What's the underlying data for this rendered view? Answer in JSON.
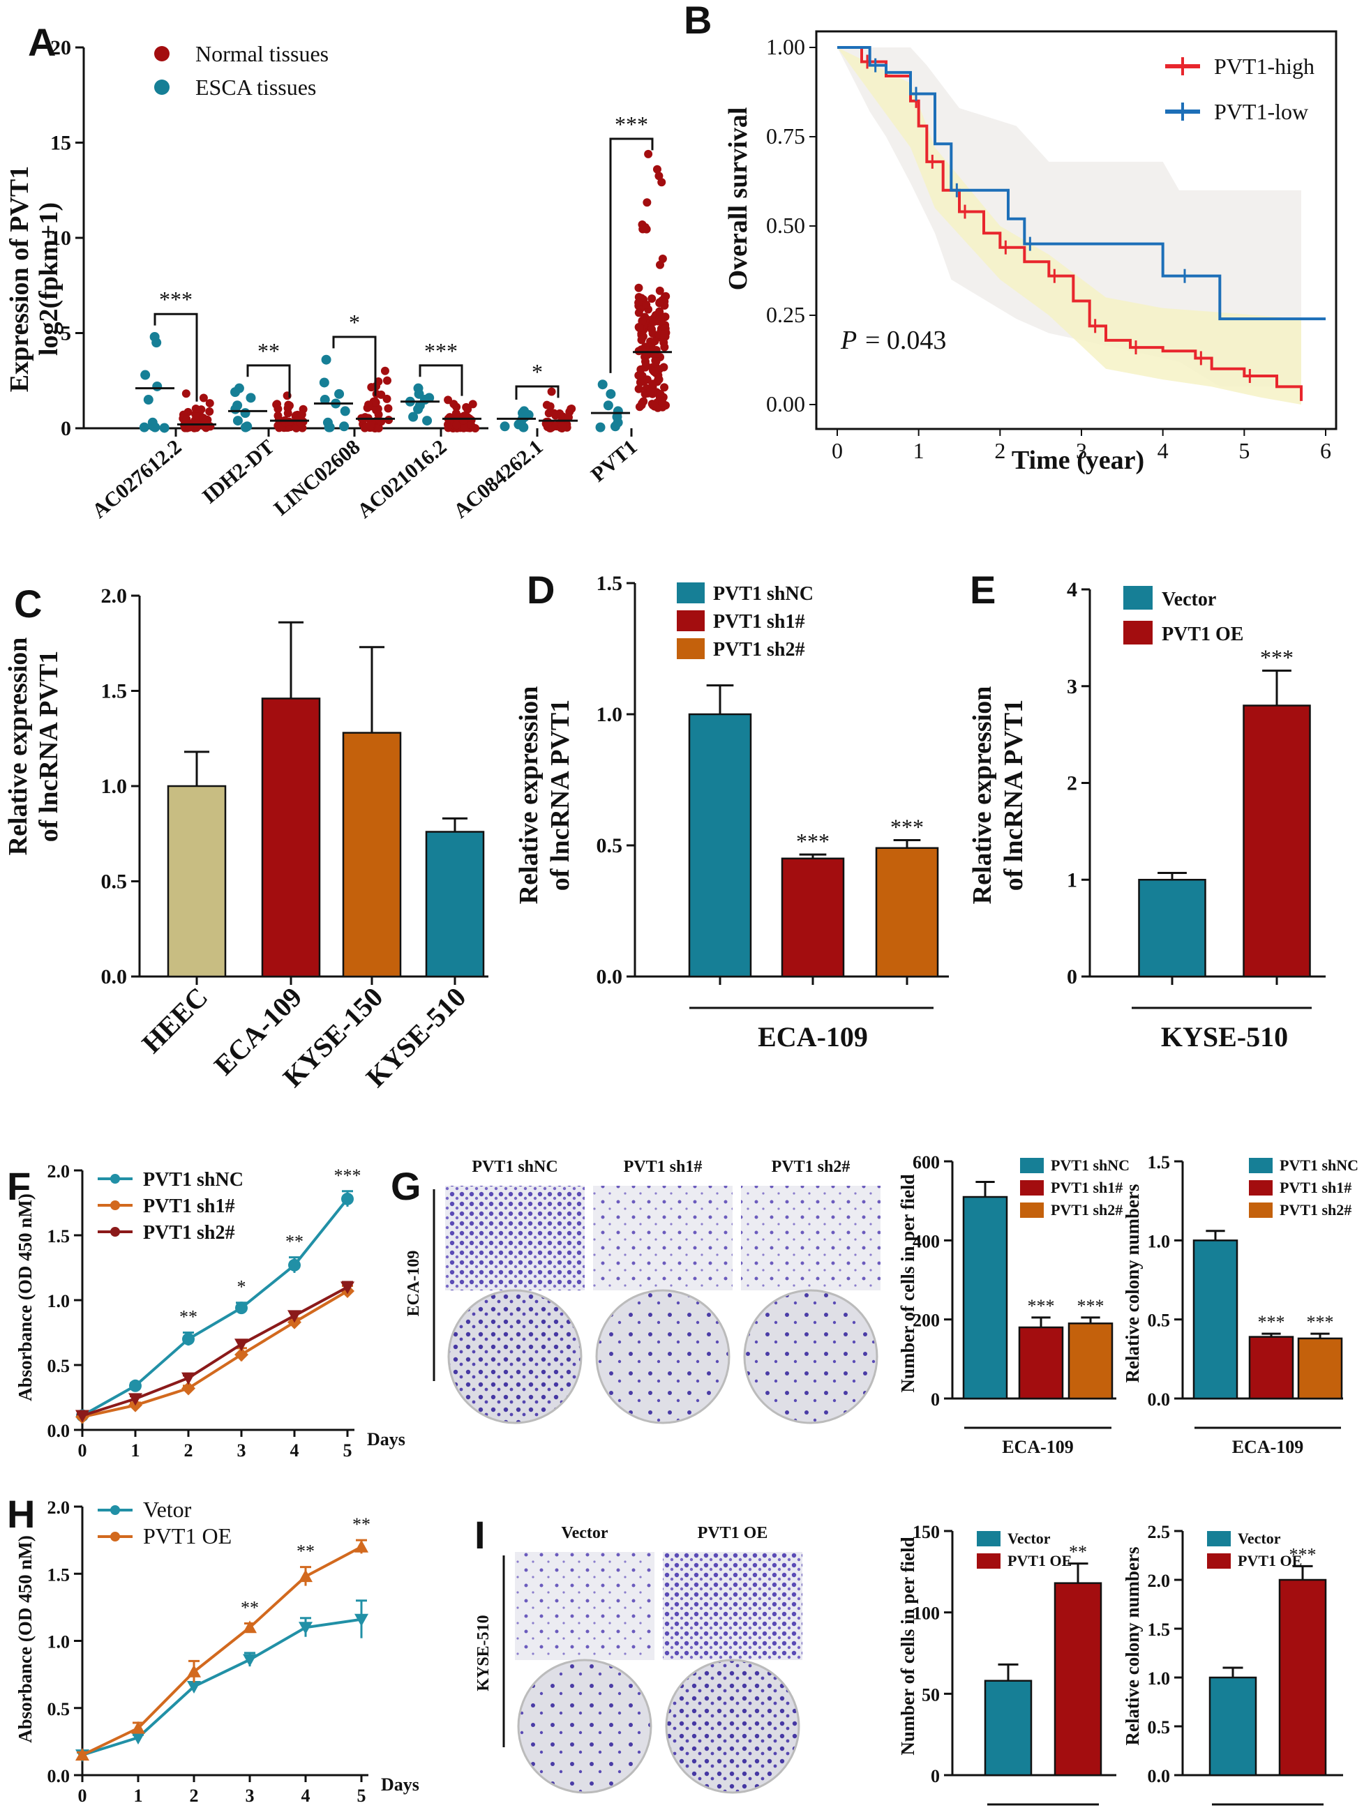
{
  "colors": {
    "teal": "#167f96",
    "red": "#a30d0f",
    "orange": "#c4610c",
    "khaki": "#c8bd82",
    "km_red": "#e8262d",
    "km_blue": "#1d6fb8",
    "line_teal": "#2190a6",
    "line_orange": "#d2691e",
    "line_darkred": "#8b1a1a",
    "stain": "#4b3fa8"
  },
  "panels": {
    "A": {
      "label": "A",
      "ylabel_lines": [
        "Expression of PVT1",
        "log2(fpkm+1)"
      ],
      "yticks": [
        "0",
        "5",
        "10",
        "15",
        "20"
      ],
      "legend": [
        "Normal tissues",
        "ESCA tissues"
      ],
      "chart_data": {
        "type": "scatter",
        "ylim": [
          0,
          20
        ],
        "categories": [
          "AC027612.2",
          "IDH2-DT",
          "LINC02608",
          "AC021016.2",
          "AC084262.1",
          "PVT1"
        ],
        "series": [
          {
            "name": "ESCA tissues",
            "medians": [
              2.1,
              0.9,
              1.3,
              1.4,
              0.5,
              0.8
            ]
          },
          {
            "name": "Normal tissues",
            "medians": [
              0.2,
              0.4,
              0.5,
              0.5,
              0.4,
              4.0
            ]
          }
        ],
        "significance": [
          "***",
          "**",
          "*",
          "***",
          "*",
          "***"
        ]
      }
    },
    "B": {
      "label": "B",
      "ylabel": "Overall survival",
      "xlabel": "Time (year)",
      "yticks": [
        "0.00",
        "0.25",
        "0.50",
        "0.75",
        "1.00"
      ],
      "xticks": [
        "0",
        "1",
        "2",
        "3",
        "4",
        "5",
        "6"
      ],
      "legend": [
        "PVT1-high",
        "PVT1-low"
      ],
      "p_prefix": "P",
      "p_value": "= 0.043",
      "chart_data": {
        "type": "line",
        "xlim": [
          0,
          6
        ],
        "ylim": [
          0,
          1
        ],
        "series": [
          {
            "name": "PVT1-high",
            "x": [
              0,
              0.3,
              0.6,
              0.9,
              1.0,
              1.1,
              1.3,
              1.5,
              1.8,
              2.0,
              2.3,
              2.6,
              2.9,
              3.1,
              3.3,
              3.6,
              4.0,
              4.4,
              4.6,
              5.0,
              5.4,
              5.7
            ],
            "y": [
              1.0,
              0.96,
              0.92,
              0.85,
              0.78,
              0.68,
              0.6,
              0.54,
              0.48,
              0.44,
              0.4,
              0.36,
              0.29,
              0.22,
              0.18,
              0.16,
              0.15,
              0.13,
              0.1,
              0.08,
              0.05,
              0.01
            ]
          },
          {
            "name": "PVT1-low",
            "x": [
              0,
              0.4,
              0.6,
              0.9,
              1.2,
              1.4,
              2.1,
              2.3,
              4.0,
              4.2,
              4.7,
              6.0
            ],
            "y": [
              1.0,
              0.95,
              0.93,
              0.87,
              0.73,
              0.6,
              0.52,
              0.45,
              0.36,
              0.36,
              0.24,
              0.24
            ]
          }
        ]
      }
    },
    "C": {
      "label": "C",
      "ylabel_lines": [
        "Relative expression",
        "of lncRNA PVT1"
      ],
      "yticks": [
        "0.0",
        "0.5",
        "1.0",
        "1.5",
        "2.0"
      ],
      "chart_data": {
        "type": "bar",
        "ylim": [
          0,
          2
        ],
        "categories": [
          "HEEC",
          "ECA-109",
          "KYSE-150",
          "KYSE-510"
        ],
        "values": [
          1.0,
          1.46,
          1.28,
          0.76
        ],
        "errors": [
          0.18,
          0.4,
          0.45,
          0.07
        ]
      }
    },
    "D": {
      "label": "D",
      "ylabel_lines": [
        "Relative expression",
        "of lncRNA PVT1"
      ],
      "yticks": [
        "0.0",
        "0.5",
        "1.0",
        "1.5"
      ],
      "group": "ECA-109",
      "legend": [
        "PVT1 shNC",
        "PVT1 sh1#",
        "PVT1 sh2#"
      ],
      "chart_data": {
        "type": "bar",
        "ylim": [
          0,
          1.5
        ],
        "categories": [
          "PVT1 shNC",
          "PVT1 sh1#",
          "PVT1 sh2#"
        ],
        "values": [
          1.0,
          0.45,
          0.49
        ],
        "errors": [
          0.11,
          0.015,
          0.03
        ],
        "significance": [
          "",
          "***",
          "***"
        ]
      }
    },
    "E": {
      "label": "E",
      "ylabel_lines": [
        "Relative expression",
        "of lncRNA PVT1"
      ],
      "yticks": [
        "0",
        "1",
        "2",
        "3",
        "4"
      ],
      "group": "KYSE-510",
      "legend": [
        "Vector",
        "PVT1 OE"
      ],
      "chart_data": {
        "type": "bar",
        "ylim": [
          0,
          4
        ],
        "categories": [
          "Vector",
          "PVT1 OE"
        ],
        "values": [
          1.0,
          2.8
        ],
        "errors": [
          0.07,
          0.36
        ],
        "significance": [
          "",
          "***"
        ]
      }
    },
    "F": {
      "label": "F",
      "ylabel": "Absorbance (OD 450 nM)",
      "xlabel": "Days",
      "yticks": [
        "0.0",
        "0.5",
        "1.0",
        "1.5",
        "2.0"
      ],
      "xticks": [
        "0",
        "1",
        "2",
        "3",
        "4",
        "5"
      ],
      "legend": [
        "PVT1 shNC",
        "PVT1 sh1#",
        "PVT1 sh2#"
      ],
      "chart_data": {
        "type": "line",
        "xlim": [
          0,
          5
        ],
        "ylim": [
          0,
          2
        ],
        "x": [
          0,
          1,
          2,
          3,
          4,
          5
        ],
        "series": [
          {
            "name": "PVT1 shNC",
            "values": [
              0.11,
              0.34,
              0.7,
              0.94,
              1.27,
              1.78
            ],
            "errors": [
              0.02,
              0.02,
              0.05,
              0.04,
              0.06,
              0.06
            ]
          },
          {
            "name": "PVT1 sh1#",
            "values": [
              0.1,
              0.19,
              0.32,
              0.58,
              0.83,
              1.07
            ],
            "errors": [
              0.01,
              0.02,
              0.02,
              0.05,
              0.03,
              0.04
            ]
          },
          {
            "name": "PVT1 sh2#",
            "values": [
              0.11,
              0.24,
              0.4,
              0.66,
              0.88,
              1.1
            ],
            "errors": [
              0.01,
              0.02,
              0.02,
              0.03,
              0.03,
              0.04
            ]
          }
        ],
        "significance": [
          "",
          "",
          "**",
          "*",
          "**",
          "***"
        ]
      }
    },
    "G": {
      "label": "G",
      "photo_cols": [
        "PVT1 shNC",
        "PVT1 sh1#",
        "PVT1 sh2#"
      ],
      "row_label": "ECA-109",
      "charts": [
        {
          "ylabel": "Number of cells in per  field",
          "yticks": [
            "0",
            "200",
            "400",
            "600"
          ],
          "group": "ECA-109",
          "legend": [
            "PVT1 shNC",
            "PVT1 sh1#",
            "PVT1 sh2#"
          ]
        },
        {
          "ylabel": "Relative colony numbers",
          "yticks": [
            "0.0",
            "0.5",
            "1.0",
            "1.5"
          ],
          "group": "ECA-109",
          "legend": [
            "PVT1 shNC",
            "PVT1 sh1#",
            "PVT1 sh2#"
          ]
        }
      ],
      "chart_data": [
        {
          "type": "bar",
          "ylim": [
            0,
            600
          ],
          "categories": [
            "PVT1 shNC",
            "PVT1 sh1#",
            "PVT1 sh2#"
          ],
          "values": [
            510,
            180,
            190
          ],
          "errors": [
            38,
            25,
            15
          ],
          "significance": [
            "",
            "***",
            "***"
          ]
        },
        {
          "type": "bar",
          "ylim": [
            0,
            1.5
          ],
          "categories": [
            "PVT1 shNC",
            "PVT1 sh1#",
            "PVT1 sh2#"
          ],
          "values": [
            1.0,
            0.39,
            0.38
          ],
          "errors": [
            0.06,
            0.02,
            0.03
          ],
          "significance": [
            "",
            "***",
            "***"
          ]
        }
      ]
    },
    "H": {
      "label": "H",
      "ylabel": "Absorbance (OD 450 nM)",
      "xlabel": "Days",
      "yticks": [
        "0.0",
        "0.5",
        "1.0",
        "1.5",
        "2.0"
      ],
      "xticks": [
        "0",
        "1",
        "2",
        "3",
        "4",
        "5"
      ],
      "legend": [
        "Vetor",
        "PVT1 OE"
      ],
      "chart_data": {
        "type": "line",
        "xlim": [
          0,
          5
        ],
        "ylim": [
          0,
          2
        ],
        "x": [
          0,
          1,
          2,
          3,
          4,
          5
        ],
        "series": [
          {
            "name": "Vetor",
            "values": [
              0.15,
              0.28,
              0.66,
              0.86,
              1.1,
              1.16
            ],
            "errors": [
              0.02,
              0.02,
              0.03,
              0.05,
              0.07,
              0.14
            ]
          },
          {
            "name": "PVT1 OE",
            "values": [
              0.15,
              0.35,
              0.77,
              1.1,
              1.48,
              1.7
            ],
            "errors": [
              0.02,
              0.04,
              0.08,
              0.03,
              0.07,
              0.05
            ]
          }
        ],
        "significance": [
          "",
          "",
          "",
          "**",
          "**",
          "**"
        ]
      }
    },
    "I": {
      "label": "I",
      "photo_cols": [
        "Vector",
        "PVT1 OE"
      ],
      "row_label": "KYSE-510",
      "charts": [
        {
          "ylabel": "Number of cells in per  field",
          "yticks": [
            "0",
            "50",
            "100",
            "150"
          ],
          "group": "KYSE-510",
          "legend": [
            "Vector",
            "PVT1 OE"
          ]
        },
        {
          "ylabel": "Relative colony numbers",
          "yticks": [
            "0.0",
            "0.5",
            "1.0",
            "1.5",
            "2.0",
            "2.5"
          ],
          "group": "KYSE-510",
          "legend": [
            "Vector",
            "PVT1 OE"
          ]
        }
      ],
      "chart_data": [
        {
          "type": "bar",
          "ylim": [
            0,
            150
          ],
          "categories": [
            "Vector",
            "PVT1 OE"
          ],
          "values": [
            58,
            118
          ],
          "errors": [
            10,
            12
          ],
          "significance": [
            "",
            "**"
          ]
        },
        {
          "type": "bar",
          "ylim": [
            0,
            2.5
          ],
          "categories": [
            "Vector",
            "PVT1 OE"
          ],
          "values": [
            1.0,
            2.0
          ],
          "errors": [
            0.1,
            0.14
          ],
          "significance": [
            "",
            "***"
          ]
        }
      ]
    }
  }
}
